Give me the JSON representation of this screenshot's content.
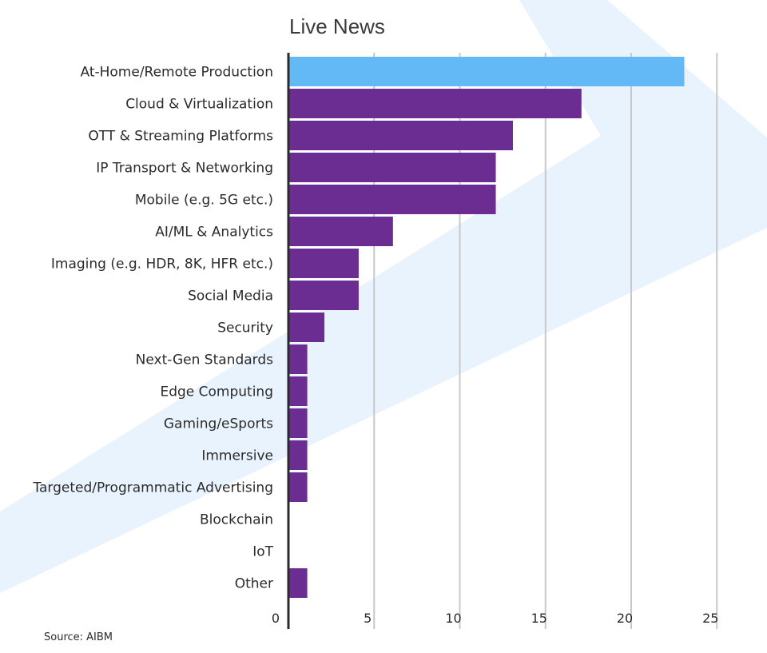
{
  "chart_data": {
    "type": "bar",
    "orientation": "horizontal",
    "title": "Live News",
    "source": "Source: AIBM",
    "categories": [
      "At-Home/Remote Production",
      "Cloud & Virtualization",
      "OTT & Streaming Platforms",
      "IP Transport & Networking",
      "Mobile (e.g. 5G etc.)",
      "AI/ML & Analytics",
      "Imaging (e.g. HDR, 8K, HFR etc.)",
      "Social Media",
      "Security",
      "Next-Gen Standards",
      "Edge Computing",
      "Gaming/eSports",
      "Immersive",
      "Targeted/Programmatic Advertising",
      "Blockchain",
      "IoT",
      "Other"
    ],
    "values": [
      23.1,
      17.1,
      13.1,
      12.1,
      12.1,
      6.1,
      4.1,
      4.1,
      2.1,
      1.1,
      1.1,
      1.1,
      1.1,
      1.1,
      0,
      0,
      1.1
    ],
    "highlight_index": 0,
    "xlim": [
      0,
      27
    ],
    "xticks": [
      0,
      5,
      10,
      15,
      20,
      25
    ],
    "xlabel": "",
    "ylabel": "",
    "grid": "vertical",
    "colors": {
      "bar": "#6b2d91",
      "highlight": "#63b8f6",
      "grid": "#c8c8c8",
      "axis": "#2b2b2b",
      "background_stripe": "#e9f3fd"
    }
  }
}
